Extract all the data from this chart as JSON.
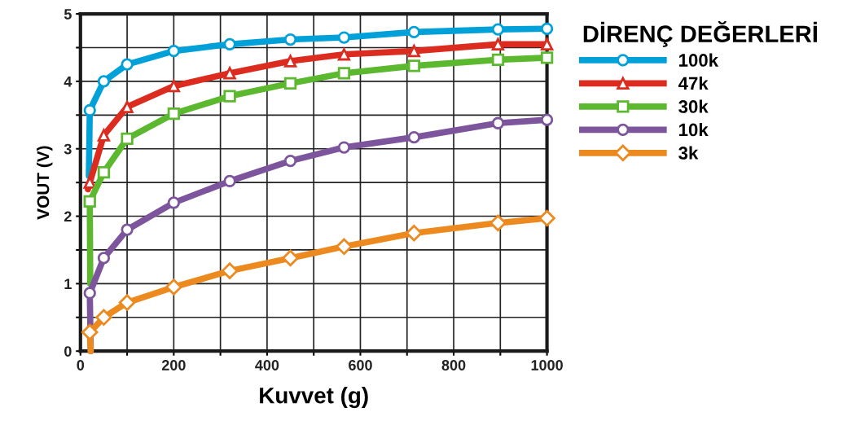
{
  "chart_data": {
    "type": "line",
    "xlabel": "Kuvvet (g)",
    "ylabel": "VOUT (V)",
    "legend_title": "DİRENÇ DEĞERLERİ",
    "series": [
      {
        "name": "100k",
        "color": "#00a0d8",
        "marker": "circle",
        "x": [
          18,
          20,
          50,
          100,
          200,
          320,
          450,
          565,
          715,
          895,
          1000
        ],
        "values": [
          2.6,
          3.57,
          4.0,
          4.25,
          4.45,
          4.55,
          4.62,
          4.65,
          4.73,
          4.77,
          4.78
        ]
      },
      {
        "name": "47k",
        "color": "#dc2b1f",
        "marker": "triangle",
        "x": [
          16,
          20,
          50,
          100,
          200,
          320,
          450,
          565,
          715,
          895,
          1000
        ],
        "values": [
          2.4,
          2.5,
          3.2,
          3.62,
          3.93,
          4.12,
          4.3,
          4.4,
          4.45,
          4.55,
          4.55
        ]
      },
      {
        "name": "30k",
        "color": "#5cb82f",
        "marker": "square",
        "x": [
          21,
          20,
          50,
          100,
          200,
          320,
          450,
          565,
          715,
          895,
          1000
        ],
        "values": [
          1.0,
          2.22,
          2.65,
          3.15,
          3.52,
          3.78,
          3.97,
          4.12,
          4.23,
          4.32,
          4.35
        ]
      },
      {
        "name": "10k",
        "color": "#7d559c",
        "marker": "circle",
        "x": [
          22,
          20,
          50,
          100,
          200,
          320,
          450,
          565,
          715,
          895,
          1000
        ],
        "values": [
          0,
          0.86,
          1.38,
          1.8,
          2.2,
          2.52,
          2.82,
          3.02,
          3.17,
          3.38,
          3.43
        ]
      },
      {
        "name": "3k",
        "color": "#ec8a1f",
        "marker": "diamond",
        "x": [
          22,
          20,
          50,
          100,
          200,
          320,
          450,
          565,
          715,
          895,
          1000
        ],
        "values": [
          0,
          0.28,
          0.5,
          0.72,
          0.95,
          1.19,
          1.38,
          1.55,
          1.75,
          1.9,
          1.97
        ]
      }
    ],
    "xlim": [
      0,
      1000
    ],
    "ylim": [
      0,
      5
    ],
    "xticks": [
      0,
      {
        "value": 100,
        "label": null
      },
      200,
      {
        "value": 300,
        "label": null
      },
      400,
      {
        "value": 500,
        "label": null
      },
      600,
      {
        "value": 700,
        "label": null
      },
      800,
      {
        "value": 900,
        "label": null
      },
      1000
    ],
    "yticks": [
      0,
      {
        "value": 0.5,
        "label": null
      },
      1,
      {
        "value": 1.5,
        "label": null
      },
      2,
      {
        "value": 2.5,
        "label": null
      },
      3,
      {
        "value": 3.5,
        "label": null
      },
      4,
      {
        "value": 4.5,
        "label": null
      },
      5
    ],
    "grid": true,
    "legend": "right",
    "line_style": "solid"
  }
}
